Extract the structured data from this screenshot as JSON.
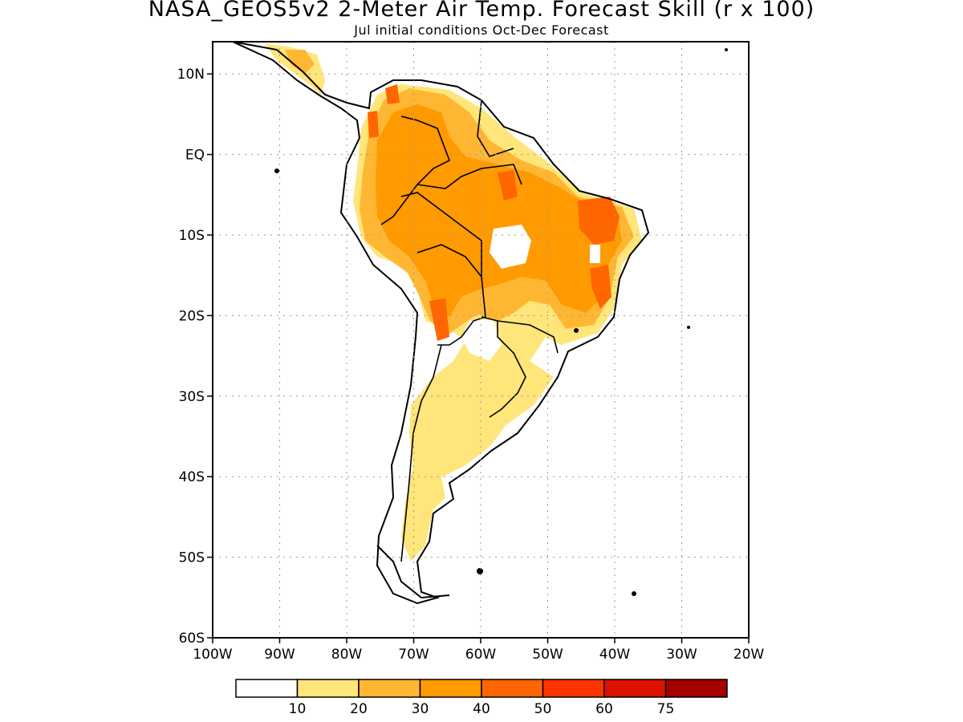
{
  "header": {
    "title": "NASA_GEOS5v2 2-Meter Air Temp. Forecast Skill (r x 100)",
    "subtitle": "Jul initial conditions  Oct-Dec Forecast"
  },
  "map": {
    "region": "South America",
    "lon_range": [
      -100,
      -20
    ],
    "lat_range": [
      -60,
      14
    ],
    "lat_ticks": [
      {
        "value": 10,
        "label": "10N"
      },
      {
        "value": 0,
        "label": "EQ"
      },
      {
        "value": -10,
        "label": "10S"
      },
      {
        "value": -20,
        "label": "20S"
      },
      {
        "value": -30,
        "label": "30S"
      },
      {
        "value": -40,
        "label": "40S"
      },
      {
        "value": -50,
        "label": "50S"
      },
      {
        "value": -60,
        "label": "60S"
      }
    ],
    "lon_ticks": [
      {
        "value": -100,
        "label": "100W"
      },
      {
        "value": -90,
        "label": "90W"
      },
      {
        "value": -80,
        "label": "80W"
      },
      {
        "value": -70,
        "label": "70W"
      },
      {
        "value": -60,
        "label": "60W"
      },
      {
        "value": -50,
        "label": "50W"
      },
      {
        "value": -40,
        "label": "40W"
      },
      {
        "value": -30,
        "label": "30W"
      },
      {
        "value": -20,
        "label": "20W"
      }
    ],
    "grid": "dotted"
  },
  "colorbar": {
    "colors": [
      "#ffffff",
      "#ffe57a",
      "#ffb733",
      "#ff9a00",
      "#ff6600",
      "#ff3300",
      "#dd1100",
      "#a50000"
    ],
    "labels": [
      "10",
      "20",
      "30",
      "40",
      "50",
      "60",
      "75"
    ]
  }
}
